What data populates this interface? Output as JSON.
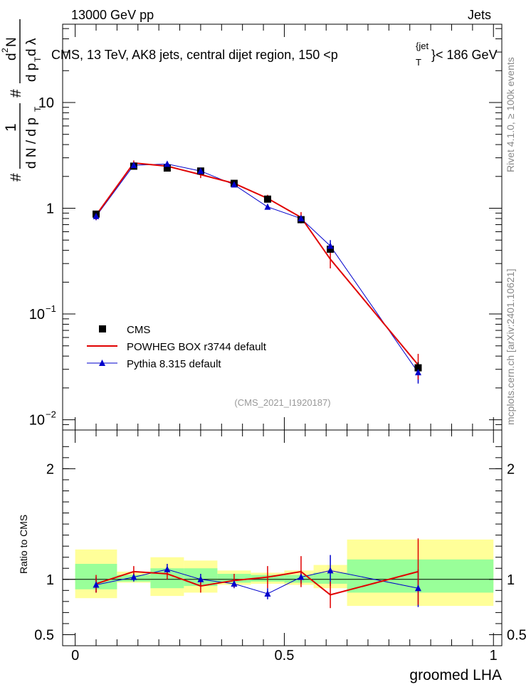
{
  "header": {
    "left": "13000 GeV pp",
    "right": "Jets"
  },
  "title": {
    "main": "CMS, 13 TeV, AK8 jets, central dijet region, 150 <p",
    "sup": "{jet",
    "sub": "T",
    "tail": "}< 186 GeV"
  },
  "ylabel": {
    "hash1": "#",
    "frac1_num": "1",
    "frac1_den": "d N / d p",
    "frac1_den_sub": "T",
    "hash2": "#",
    "frac2_num": "d",
    "frac2_num_sup": "2",
    "frac2_num_tail": "N",
    "frac2_den": "d p",
    "frac2_den_sub": "T",
    "frac2_den_tail": " d λ"
  },
  "side_text": {
    "rivet": "Rivet 4.1.0, ≥ 100k events",
    "mcplots": "mcplots.cern.ch [arXiv:2401.10621]"
  },
  "analysis_id": "(CMS_2021_I1920187)",
  "colors": {
    "cms": "#000000",
    "powheg": "#e00000",
    "pythia": "#0000cc",
    "band_outer": "#ffff99",
    "band_inner": "#99ff99"
  },
  "chart_data": [
    {
      "type": "scatter",
      "name": "main",
      "xlabel": "groomed LHA",
      "ylim": [
        0.008,
        55
      ],
      "yscale": "log",
      "xlim": [
        -0.03,
        1.02
      ],
      "yticks": [
        {
          "v": 0.01,
          "base": "10",
          "exp": "−2"
        },
        {
          "v": 0.1,
          "base": "10",
          "exp": "−1"
        },
        {
          "v": 1,
          "base": "1",
          "exp": ""
        },
        {
          "v": 10,
          "base": "10",
          "exp": ""
        }
      ],
      "x": [
        0.05,
        0.14,
        0.22,
        0.3,
        0.38,
        0.46,
        0.54,
        0.61,
        0.82
      ],
      "bin_edges": [
        0.0,
        0.1,
        0.18,
        0.26,
        0.34,
        0.42,
        0.5,
        0.57,
        0.65,
        1.0
      ],
      "legend": [
        {
          "label": "CMS"
        },
        {
          "label": "POWHEG BOX r3744 default"
        },
        {
          "label": "Pythia 8.315 default"
        }
      ],
      "series": [
        {
          "name": "CMS",
          "values": [
            0.88,
            2.5,
            2.4,
            2.25,
            1.72,
            1.22,
            0.78,
            0.41,
            0.031
          ],
          "err": [
            0.05,
            0.1,
            0.1,
            0.08,
            0.06,
            0.05,
            0.04,
            0.03,
            0.004
          ]
        },
        {
          "name": "POWHEG BOX r3744 default",
          "values": [
            0.86,
            2.68,
            2.5,
            2.08,
            1.72,
            1.24,
            0.82,
            0.33,
            0.033
          ],
          "err": [
            0.08,
            0.15,
            0.15,
            0.15,
            0.1,
            0.1,
            0.1,
            0.06,
            0.009
          ]
        },
        {
          "name": "Pythia 8.315 default",
          "values": [
            0.84,
            2.55,
            2.62,
            2.25,
            1.67,
            1.03,
            0.8,
            0.44,
            0.028
          ],
          "err": [
            0.07,
            0.12,
            0.12,
            0.1,
            0.08,
            0.06,
            0.06,
            0.06,
            0.006
          ]
        }
      ]
    },
    {
      "type": "line",
      "name": "ratio",
      "ylabel": "Ratio to CMS",
      "ylim": [
        0.4,
        2.35
      ],
      "xlim": [
        -0.03,
        1.02
      ],
      "yticks": [
        0.5,
        1,
        2
      ],
      "ytick_labels": [
        "0.5",
        "1",
        "2"
      ],
      "xticks": [
        0,
        0.5,
        1
      ],
      "xtick_labels": [
        "0",
        "0.5",
        "1"
      ],
      "bands_outer": [
        [
          0.83,
          1.27
        ],
        [
          0.97,
          1.07
        ],
        [
          0.85,
          1.2
        ],
        [
          0.88,
          1.17
        ],
        [
          0.95,
          1.08
        ],
        [
          0.96,
          1.06
        ],
        [
          0.95,
          1.08
        ],
        [
          0.92,
          1.13
        ],
        [
          0.76,
          1.36
        ]
      ],
      "bands_inner": [
        [
          0.91,
          1.14
        ],
        [
          0.98,
          1.04
        ],
        [
          0.92,
          1.1
        ],
        [
          0.94,
          1.1
        ],
        [
          0.97,
          1.05
        ],
        [
          0.98,
          1.04
        ],
        [
          0.97,
          1.04
        ],
        [
          0.96,
          1.06
        ],
        [
          0.88,
          1.18
        ]
      ],
      "series": [
        {
          "name": "POWHEG BOX r3744 default",
          "values": [
            0.96,
            1.07,
            1.05,
            0.94,
            0.99,
            1.02,
            1.07,
            0.86,
            1.07
          ],
          "err": [
            0.08,
            0.05,
            0.05,
            0.06,
            0.06,
            0.1,
            0.14,
            0.12,
            0.3
          ]
        },
        {
          "name": "Pythia 8.315 default",
          "values": [
            0.95,
            1.02,
            1.09,
            1.0,
            0.96,
            0.87,
            1.02,
            1.08,
            0.92
          ],
          "err": [
            0.07,
            0.04,
            0.05,
            0.05,
            0.04,
            0.05,
            0.06,
            0.14,
            0.17
          ]
        }
      ]
    }
  ]
}
